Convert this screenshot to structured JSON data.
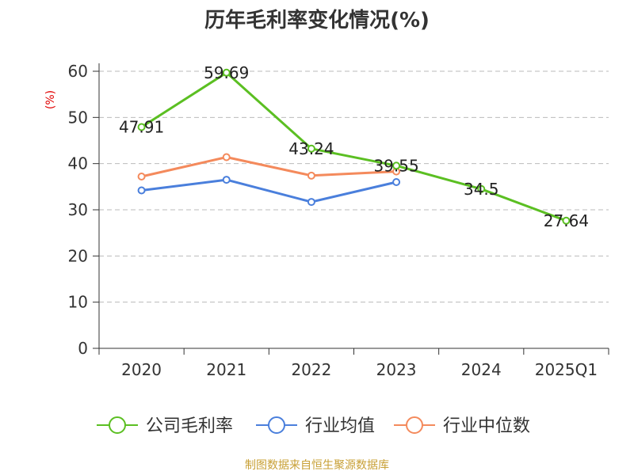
{
  "chart_data": {
    "type": "line",
    "title": "历年毛利率变化情况(%)",
    "ylabel": "(%)",
    "xlabel": "",
    "categories": [
      "2020",
      "2021",
      "2022",
      "2023",
      "2024",
      "2025Q1"
    ],
    "ylim": [
      0,
      60
    ],
    "yticks": [
      0,
      10,
      20,
      30,
      40,
      50,
      60
    ],
    "grid": true,
    "legend_position": "bottom",
    "series": [
      {
        "name": "公司毛利率",
        "color": "#5bbf22",
        "values": [
          47.91,
          59.69,
          43.24,
          39.55,
          34.5,
          27.64
        ],
        "data_labels": [
          "47.91",
          "59.69",
          "43.24",
          "39.55",
          "34.5",
          "27.64"
        ]
      },
      {
        "name": "行业均值",
        "color": "#4a7fdc",
        "values": [
          34.2,
          36.5,
          31.7,
          36.0,
          null,
          null
        ]
      },
      {
        "name": "行业中位数",
        "color": "#f48a5c",
        "values": [
          37.2,
          41.4,
          37.4,
          38.3,
          null,
          null
        ]
      }
    ],
    "source": "制图数据来自恒生聚源数据库"
  }
}
